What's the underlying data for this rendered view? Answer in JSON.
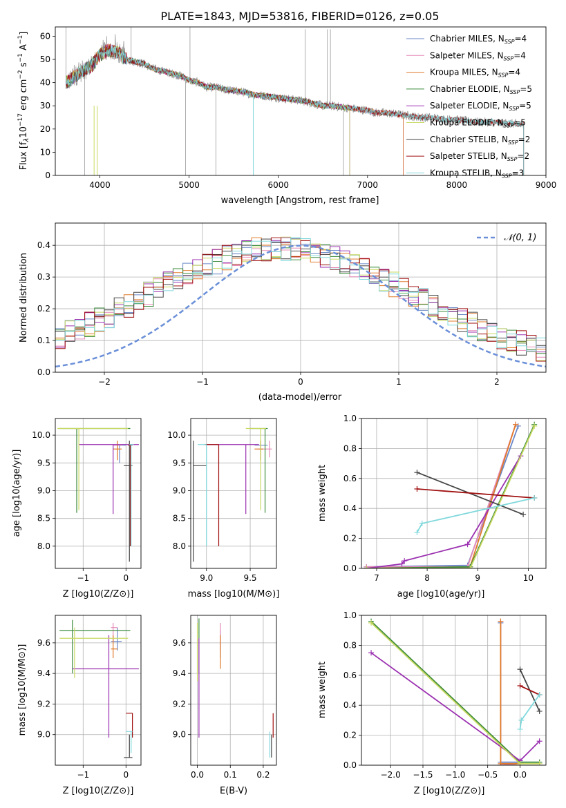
{
  "title": "PLATE=1843, MJD=53816, FIBERID=0126, z=0.05",
  "colors": [
    "#6a87c8",
    "#e68ab8",
    "#e07a2a",
    "#3a8a3a",
    "#9b30b0",
    "#c8d860",
    "#444444",
    "#a01010",
    "#80d8dc"
  ],
  "chart_data": [
    {
      "id": "spectrum",
      "type": "line",
      "title": "PLATE=1843, MJD=53816, FIBERID=0126, z=0.05",
      "xlabel": "wavelength [Angstrom, rest frame]",
      "ylabel": "Flux [f_λ 10^-17 erg cm^-2 s^-1 A^-1]",
      "xlim": [
        3500,
        9000
      ],
      "ylim": [
        0,
        64
      ],
      "xticks": [
        "4000",
        "5000",
        "6000",
        "7000",
        "8000",
        "9000"
      ],
      "yticks": [
        "0",
        "10",
        "20",
        "30",
        "40",
        "50",
        "60"
      ],
      "legend_position": "top-right",
      "series": [
        {
          "name": "Chabrier MILES, N_SSP=4",
          "xmax": 7400
        },
        {
          "name": "Salpeter MILES, N_SSP=4",
          "xmax": 7400
        },
        {
          "name": "Kroupa MILES, N_SSP=4",
          "xmax": 7400
        },
        {
          "name": "Chabrier ELODIE, N_SSP=5",
          "xmax": 6800
        },
        {
          "name": "Salpeter ELODIE, N_SSP=5",
          "xmax": 6800
        },
        {
          "name": "Kroupa ELODIE, N_SSP=5",
          "xmax": 6800
        },
        {
          "name": "Chabrier STELIB, N_SSP=2",
          "xmax": 8750
        },
        {
          "name": "Salpeter STELIB, N_SSP=2",
          "xmax": 8750
        },
        {
          "name": "Kroupa STELIB, N_SSP=3",
          "xmax": 8750
        }
      ],
      "observed_points": [
        [
          3620,
          40
        ],
        [
          3700,
          42
        ],
        [
          3800,
          45
        ],
        [
          3900,
          47
        ],
        [
          4000,
          52
        ],
        [
          4100,
          54
        ],
        [
          4200,
          53
        ],
        [
          4300,
          50
        ],
        [
          4400,
          49
        ],
        [
          4500,
          48
        ],
        [
          4600,
          46
        ],
        [
          4700,
          45
        ],
        [
          4800,
          44
        ],
        [
          4900,
          43
        ],
        [
          5000,
          41
        ],
        [
          5100,
          40
        ],
        [
          5200,
          38
        ],
        [
          5300,
          38
        ],
        [
          5400,
          37
        ],
        [
          5500,
          36.5
        ],
        [
          5600,
          36
        ],
        [
          5700,
          35
        ],
        [
          5800,
          34.5
        ],
        [
          5900,
          34
        ],
        [
          6000,
          33.5
        ],
        [
          6100,
          33
        ],
        [
          6200,
          32.5
        ],
        [
          6300,
          32
        ],
        [
          6400,
          31
        ],
        [
          6500,
          30
        ],
        [
          6600,
          30
        ],
        [
          6700,
          29.5
        ],
        [
          6800,
          29
        ],
        [
          6900,
          28.5
        ],
        [
          7000,
          28
        ],
        [
          7100,
          27
        ],
        [
          7200,
          27
        ],
        [
          7300,
          26.5
        ],
        [
          7400,
          26
        ],
        [
          7500,
          25.5
        ],
        [
          7600,
          25
        ],
        [
          7700,
          25
        ],
        [
          7800,
          24.5
        ],
        [
          7900,
          24
        ],
        [
          8000,
          24
        ],
        [
          8100,
          23.5
        ],
        [
          8200,
          23
        ],
        [
          8300,
          23
        ],
        [
          8400,
          23
        ],
        [
          8500,
          22.5
        ],
        [
          8600,
          22.5
        ],
        [
          8700,
          22
        ]
      ]
    },
    {
      "id": "residuals",
      "type": "step",
      "xlabel": "(data-model)/error",
      "ylabel": "Normed distribution",
      "xlim": [
        -2.5,
        2.5
      ],
      "ylim": [
        0,
        0.47
      ],
      "xticks": [
        "−2",
        "−1",
        "0",
        "1",
        "2"
      ],
      "yticks": [
        "0.0",
        "0.1",
        "0.2",
        "0.3",
        "0.4"
      ],
      "legend_label": "N(0,1)",
      "legend_position": "top-right",
      "gaussian": {
        "mu": 0,
        "sigma": 1
      }
    },
    {
      "id": "age-vs-z",
      "type": "errorbar",
      "xlabel": "Z [log10(Z/Z⊙)]",
      "ylabel": "age  [log10(age/yr)]",
      "xlim": [
        -1.65,
        0.35
      ],
      "ylim": [
        7.6,
        10.3
      ],
      "xticks": [
        "−1",
        "0"
      ],
      "yticks": [
        "8.0",
        "8.5",
        "9.0",
        "9.5",
        "10.0"
      ],
      "points": [
        {
          "c": 0,
          "x": -0.15,
          "y": 9.82,
          "xl": -0.3,
          "xh": 0.0,
          "yl": 9.5,
          "yh": 9.82
        },
        {
          "c": 1,
          "x": -0.2,
          "y": 9.82,
          "xl": -0.3,
          "xh": -0.1,
          "yl": 9.55,
          "yh": 9.9
        },
        {
          "c": 2,
          "x": -0.2,
          "y": 9.75,
          "xl": -0.3,
          "xh": -0.1,
          "yl": 9.55,
          "yh": 9.9
        },
        {
          "c": 3,
          "x": -1.15,
          "y": 10.12,
          "xl": -1.55,
          "xh": 0.1,
          "yl": 8.6,
          "yh": 10.12
        },
        {
          "c": 4,
          "x": -0.3,
          "y": 9.83,
          "xl": -1.1,
          "xh": 0.3,
          "yl": 8.58,
          "yh": 9.83
        },
        {
          "c": 5,
          "x": -1.1,
          "y": 10.12,
          "xl": -1.6,
          "xh": 0.05,
          "yl": 8.65,
          "yh": 10.12
        },
        {
          "c": 6,
          "x": 0.08,
          "y": 9.45,
          "xl": -0.05,
          "xh": 0.15,
          "yl": 7.72,
          "yh": 9.9
        },
        {
          "c": 7,
          "x": 0.1,
          "y": 9.82,
          "xl": 0.05,
          "xh": 0.15,
          "yl": 8.0,
          "yh": 9.82
        },
        {
          "c": 8,
          "x": 0.12,
          "y": 9.83,
          "xl": 0.08,
          "xh": 0.18,
          "yl": 8.0,
          "yh": 9.83
        }
      ]
    },
    {
      "id": "age-vs-mass",
      "type": "errorbar",
      "xlabel": "mass [log10(M/M⊙)]",
      "ylabel": "",
      "xlim": [
        8.82,
        9.8
      ],
      "ylim": [
        7.6,
        10.3
      ],
      "xticks": [
        "9.0",
        "9.5"
      ],
      "yticks": [
        "8.0",
        "8.5",
        "9.0",
        "9.5",
        "10.0"
      ],
      "points": [
        {
          "c": 0,
          "x": 9.62,
          "y": 9.82,
          "xl": 9.55,
          "xh": 9.7,
          "yl": 9.55,
          "yh": 9.9
        },
        {
          "c": 1,
          "x": 9.72,
          "y": 9.75,
          "xl": 9.6,
          "xh": 9.75,
          "yl": 9.6,
          "yh": 9.9
        },
        {
          "c": 2,
          "x": 9.62,
          "y": 9.75,
          "xl": 9.55,
          "xh": 9.65,
          "yl": 9.55,
          "yh": 9.9
        },
        {
          "c": 3,
          "x": 9.67,
          "y": 10.12,
          "xl": 9.5,
          "xh": 9.7,
          "yl": 8.6,
          "yh": 10.12
        },
        {
          "c": 4,
          "x": 9.45,
          "y": 9.83,
          "xl": 9.0,
          "xh": 9.6,
          "yl": 8.58,
          "yh": 9.83
        },
        {
          "c": 5,
          "x": 9.62,
          "y": 10.12,
          "xl": 9.45,
          "xh": 9.68,
          "yl": 8.65,
          "yh": 10.12
        },
        {
          "c": 6,
          "x": 8.85,
          "y": 9.45,
          "xl": 8.85,
          "xh": 9.0,
          "yl": 7.72,
          "yh": 9.9
        },
        {
          "c": 7,
          "x": 9.14,
          "y": 9.83,
          "xl": 8.98,
          "xh": 9.14,
          "yl": 8.0,
          "yh": 9.83
        },
        {
          "c": 8,
          "x": 9.0,
          "y": 9.83,
          "xl": 8.9,
          "xh": 9.0,
          "yl": 8.0,
          "yh": 9.83
        }
      ]
    },
    {
      "id": "weight-vs-age",
      "type": "line",
      "xlabel": "age  [log10(age/yr)]",
      "ylabel": "mass weight",
      "xlim": [
        6.7,
        10.35
      ],
      "ylim": [
        0,
        1.0
      ],
      "xticks": [
        "7",
        "8",
        "9",
        "10"
      ],
      "yticks": [
        "0.0",
        "0.2",
        "0.4",
        "0.6",
        "0.8",
        "1.0"
      ],
      "series": [
        {
          "c": 0,
          "x": [
            6.8,
            8.8,
            9.8
          ],
          "y": [
            0.01,
            0.02,
            0.95
          ]
        },
        {
          "c": 1,
          "x": [
            6.8,
            8.8,
            9.75
          ],
          "y": [
            0.01,
            0.01,
            0.96
          ]
        },
        {
          "c": 2,
          "x": [
            6.8,
            8.85,
            9.75
          ],
          "y": [
            0.0,
            0.01,
            0.96
          ]
        },
        {
          "c": 3,
          "x": [
            6.8,
            8.85,
            10.12
          ],
          "y": [
            0.0,
            0.01,
            0.96
          ]
        },
        {
          "c": 4,
          "x": [
            6.8,
            7.5,
            7.55,
            8.8,
            9.85
          ],
          "y": [
            0.0,
            0.03,
            0.05,
            0.16,
            0.75
          ]
        },
        {
          "c": 5,
          "x": [
            6.8,
            8.85,
            10.12
          ],
          "y": [
            0.0,
            0.0,
            0.95
          ]
        },
        {
          "c": 6,
          "x": [
            7.8,
            9.9
          ],
          "y": [
            0.64,
            0.36
          ]
        },
        {
          "c": 7,
          "x": [
            7.8,
            10.12
          ],
          "y": [
            0.53,
            0.47
          ]
        },
        {
          "c": 8,
          "x": [
            7.8,
            7.9,
            10.12
          ],
          "y": [
            0.24,
            0.3,
            0.47
          ]
        }
      ]
    },
    {
      "id": "mass-vs-z",
      "type": "errorbar",
      "xlabel": "Z [log10(Z/Z⊙)]",
      "ylabel": "mass [log10(M/M⊙)]",
      "xlim": [
        -1.65,
        0.35
      ],
      "ylim": [
        8.8,
        9.78
      ],
      "xticks": [
        "−1",
        "0"
      ],
      "yticks": [
        "9.0",
        "9.2",
        "9.4",
        "9.6"
      ],
      "points": [
        {
          "c": 0,
          "x": -0.2,
          "y": 9.61,
          "xl": -0.35,
          "xh": -0.1,
          "yl": 9.55,
          "yh": 9.7
        },
        {
          "c": 1,
          "x": -0.3,
          "y": 9.7,
          "xl": -0.35,
          "xh": -0.2,
          "yl": 9.6,
          "yh": 9.73
        },
        {
          "c": 2,
          "x": -0.3,
          "y": 9.56,
          "xl": -0.35,
          "xh": -0.2,
          "yl": 9.5,
          "yh": 9.65
        },
        {
          "c": 3,
          "x": -1.25,
          "y": 9.68,
          "xl": -1.55,
          "xh": 0.1,
          "yl": 9.4,
          "yh": 9.75
        },
        {
          "c": 4,
          "x": -0.4,
          "y": 9.43,
          "xl": -1.25,
          "xh": 0.3,
          "yl": 8.98,
          "yh": 9.65
        },
        {
          "c": 5,
          "x": -1.2,
          "y": 9.63,
          "xl": -1.55,
          "xh": 0.05,
          "yl": 9.37,
          "yh": 9.7
        },
        {
          "c": 6,
          "x": 0.08,
          "y": 8.85,
          "xl": -0.05,
          "xh": 0.15,
          "yl": 8.85,
          "yh": 9.0
        },
        {
          "c": 7,
          "x": 0.15,
          "y": 9.14,
          "xl": 0.0,
          "xh": 0.15,
          "yl": 8.98,
          "yh": 9.14
        },
        {
          "c": 8,
          "x": 0.12,
          "y": 9.02,
          "xl": 0.0,
          "xh": 0.15,
          "yl": 8.88,
          "yh": 9.02
        }
      ]
    },
    {
      "id": "mass-vs-ebv",
      "type": "errorbar",
      "xlabel": "E(B-V)",
      "ylabel": "",
      "xlim": [
        -0.02,
        0.24
      ],
      "ylim": [
        8.8,
        9.78
      ],
      "xticks": [
        "0.0",
        "0.1",
        "0.2"
      ],
      "yticks": [
        "9.0",
        "9.2",
        "9.4",
        "9.6"
      ],
      "points": [
        {
          "c": 0,
          "x": 0.07,
          "y": 9.61,
          "xl": 0.07,
          "xh": 0.07,
          "yl": 9.5,
          "yh": 9.68
        },
        {
          "c": 1,
          "x": 0.07,
          "y": 9.7,
          "xl": 0.07,
          "xh": 0.07,
          "yl": 9.55,
          "yh": 9.73
        },
        {
          "c": 2,
          "x": 0.07,
          "y": 9.56,
          "xl": 0.07,
          "xh": 0.07,
          "yl": 9.43,
          "yh": 9.65
        },
        {
          "c": 3,
          "x": 0.005,
          "y": 9.68,
          "xl": 0.005,
          "xh": 0.005,
          "yl": 9.4,
          "yh": 9.76
        },
        {
          "c": 4,
          "x": 0.005,
          "y": 9.43,
          "xl": 0.005,
          "xh": 0.005,
          "yl": 8.98,
          "yh": 9.63
        },
        {
          "c": 5,
          "x": 0.0,
          "y": 9.63,
          "xl": 0.0,
          "xh": 0.0,
          "yl": 9.35,
          "yh": 9.73
        },
        {
          "c": 6,
          "x": 0.225,
          "y": 8.85,
          "xl": 0.225,
          "xh": 0.225,
          "yl": 8.85,
          "yh": 9.0
        },
        {
          "c": 7,
          "x": 0.23,
          "y": 9.14,
          "xl": 0.23,
          "xh": 0.23,
          "yl": 8.98,
          "yh": 9.14
        },
        {
          "c": 8,
          "x": 0.22,
          "y": 9.02,
          "xl": 0.22,
          "xh": 0.22,
          "yl": 8.85,
          "yh": 9.02
        }
      ]
    },
    {
      "id": "weight-vs-z",
      "type": "line",
      "xlabel": "Z [log10(Z/Z⊙)]",
      "ylabel": "mass weight",
      "xlim": [
        -2.45,
        0.4
      ],
      "ylim": [
        0,
        1.0
      ],
      "xticks": [
        "−2.0",
        "−1.5",
        "−1.0",
        "−0.5",
        "0.0"
      ],
      "yticks": [
        "0.0",
        "0.2",
        "0.4",
        "0.6",
        "0.8",
        "1.0"
      ],
      "series": [
        {
          "c": 0,
          "x": [
            -0.3,
            -0.3,
            0.0
          ],
          "y": [
            0.95,
            0.02,
            0.02
          ]
        },
        {
          "c": 1,
          "x": [
            -0.3,
            -0.3,
            0.0
          ],
          "y": [
            0.96,
            0.0,
            0.01
          ]
        },
        {
          "c": 2,
          "x": [
            -0.3,
            -0.3,
            0.0
          ],
          "y": [
            0.96,
            0.01,
            0.01
          ]
        },
        {
          "c": 3,
          "x": [
            -2.3,
            0.0,
            0.3
          ],
          "y": [
            0.96,
            0.02,
            0.02
          ]
        },
        {
          "c": 4,
          "x": [
            -2.3,
            0.0,
            0.3
          ],
          "y": [
            0.75,
            0.03,
            0.16
          ]
        },
        {
          "c": 5,
          "x": [
            -2.3,
            0.0,
            0.3
          ],
          "y": [
            0.95,
            0.01,
            0.01
          ]
        },
        {
          "c": 6,
          "x": [
            0.0,
            0.3
          ],
          "y": [
            0.64,
            0.36
          ]
        },
        {
          "c": 7,
          "x": [
            0.0,
            0.3
          ],
          "y": [
            0.53,
            0.47
          ]
        },
        {
          "c": 8,
          "x": [
            0.0,
            0.02,
            0.3
          ],
          "y": [
            0.24,
            0.3,
            0.47
          ]
        }
      ]
    }
  ]
}
